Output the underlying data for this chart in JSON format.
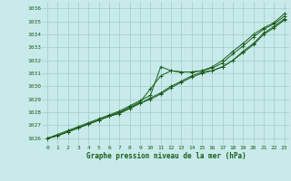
{
  "bg_color": "#c8eaea",
  "plot_bg_color": "#c8eaea",
  "grid_color": "#a0cccc",
  "line_color": "#1a5c1a",
  "xlabel": "Graphe pression niveau de la mer (hPa)",
  "ylim": [
    1025.5,
    1036.5
  ],
  "xlim": [
    -0.5,
    23.5
  ],
  "yticks": [
    1026,
    1027,
    1028,
    1029,
    1030,
    1031,
    1032,
    1033,
    1034,
    1035,
    1036
  ],
  "xticks": [
    0,
    1,
    2,
    3,
    4,
    5,
    6,
    7,
    8,
    9,
    10,
    11,
    12,
    13,
    14,
    15,
    16,
    17,
    18,
    19,
    20,
    21,
    22,
    23
  ],
  "series": [
    [
      1026.0,
      1026.3,
      1026.6,
      1026.9,
      1027.2,
      1027.5,
      1027.8,
      1028.1,
      1028.5,
      1028.9,
      1029.3,
      1031.5,
      1031.2,
      1031.1,
      1031.1,
      1031.2,
      1031.5,
      1032.0,
      1032.7,
      1033.3,
      1034.0,
      1034.5,
      1034.9,
      1035.6
    ],
    [
      1026.0,
      1026.2,
      1026.5,
      1026.8,
      1027.1,
      1027.4,
      1027.7,
      1028.0,
      1028.4,
      1028.8,
      1029.8,
      1030.8,
      1031.2,
      1031.1,
      1031.1,
      1031.2,
      1031.4,
      1031.8,
      1032.5,
      1033.1,
      1033.8,
      1034.4,
      1034.8,
      1035.4
    ],
    [
      1026.0,
      1026.2,
      1026.5,
      1026.8,
      1027.1,
      1027.4,
      1027.7,
      1027.9,
      1028.3,
      1028.7,
      1029.1,
      1029.5,
      1030.0,
      1030.4,
      1030.8,
      1031.1,
      1031.2,
      1031.5,
      1032.0,
      1032.7,
      1033.3,
      1034.1,
      1034.6,
      1035.2
    ],
    [
      1026.0,
      1026.2,
      1026.5,
      1026.8,
      1027.1,
      1027.4,
      1027.7,
      1028.0,
      1028.3,
      1028.7,
      1029.0,
      1029.4,
      1029.9,
      1030.3,
      1030.7,
      1031.0,
      1031.2,
      1031.5,
      1032.0,
      1032.6,
      1033.2,
      1034.0,
      1034.5,
      1035.1
    ]
  ]
}
